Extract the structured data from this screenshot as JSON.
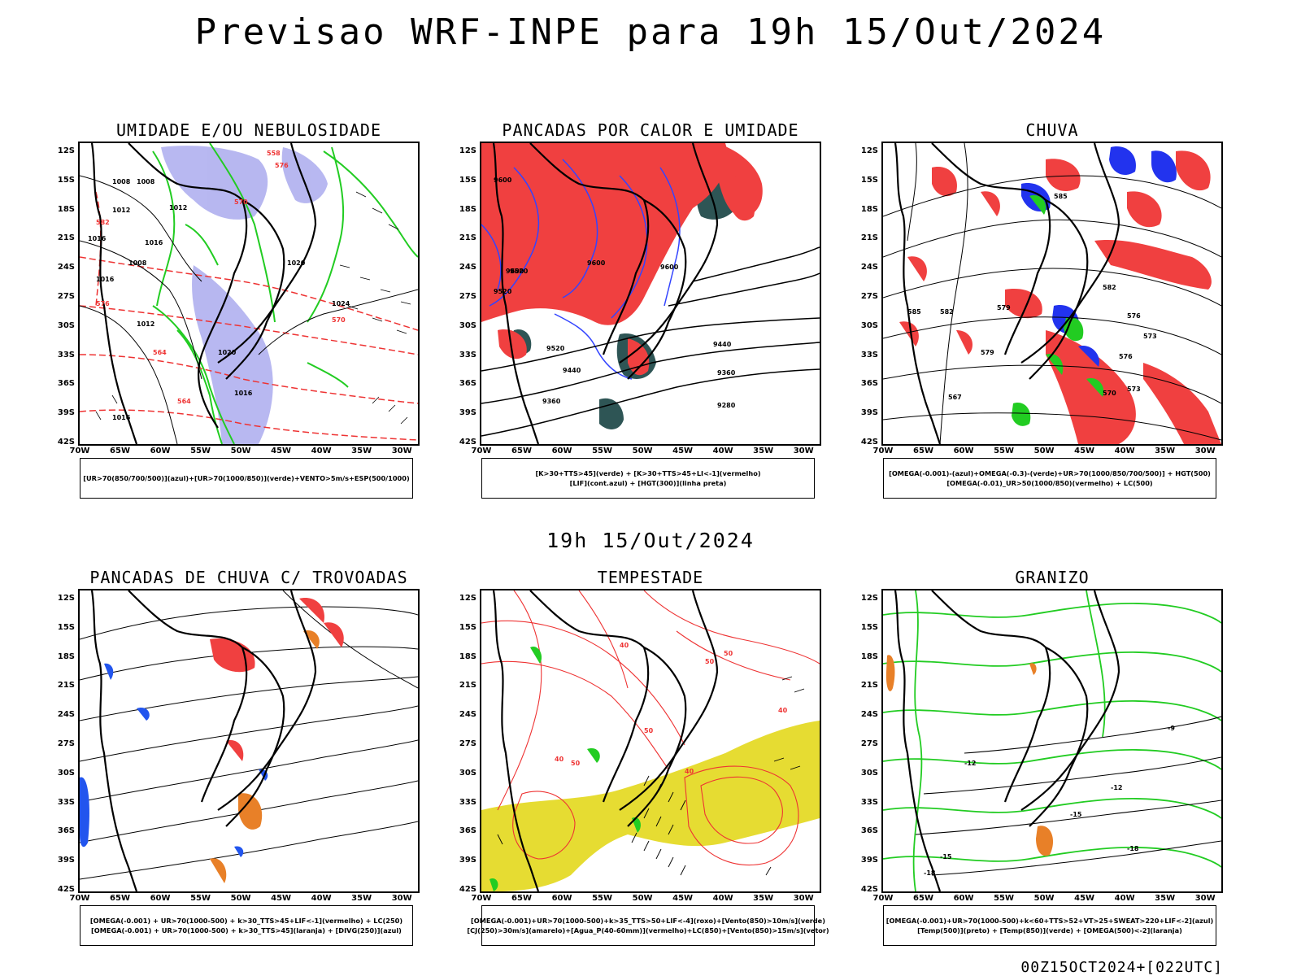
{
  "title": "Previsao WRF-INPE  para 19h 15/Out/2024",
  "middle_label": "19h 15/Out/2024",
  "footer": "00Z15OCT2024+[022UTC]",
  "axes": {
    "lat_labels": [
      "12S",
      "15S",
      "18S",
      "21S",
      "24S",
      "27S",
      "30S",
      "33S",
      "36S",
      "39S",
      "42S"
    ],
    "lon_labels": [
      "70W",
      "65W",
      "60W",
      "55W",
      "50W",
      "45W",
      "40W",
      "35W",
      "30W"
    ],
    "lat_range": [
      -42,
      -11
    ],
    "lon_range": [
      -70,
      -28
    ]
  },
  "colors": {
    "blue_fill": "#b4b4f0",
    "green": "#22cc22",
    "red_fill": "#f04040",
    "dark_teal": "#2e5555",
    "yellow": "#e6dc32",
    "orange": "#e88028",
    "contour_red": "#ee3333",
    "contour_blue": "#3344ff"
  },
  "panels": [
    {
      "title": "UMIDADE E/OU NEBULOSIDADE",
      "legend": [
        "[UR>70(850/700/500)](azul)+[UR>70(1000/850)](verde)+VENTO>5m/s+ESP(500/1000)"
      ],
      "contour_labels": [
        "1008",
        "1008",
        "1012",
        "1012",
        "1016",
        "1016",
        "1016",
        "1020",
        "1020",
        "1024",
        "1012",
        "1016",
        "1016",
        "1008",
        "576",
        "570",
        "582",
        "564",
        "558",
        "576",
        "570",
        "564"
      ]
    },
    {
      "title": "PANCADAS POR CALOR E UMIDADE",
      "legend": [
        "[K>30+TTS>45](verde) + [K>30+TTS>45+LI<-1](vermelho)",
        "[LIF](cont.azul) + [HGT(300)](linha preta)"
      ],
      "contour_labels": [
        "9600",
        "9600",
        "9600",
        "9520",
        "9600",
        "9520",
        "9520",
        "9440",
        "9440",
        "9360",
        "9360",
        "9280"
      ]
    },
    {
      "title": "CHUVA",
      "legend": [
        "[OMEGA(-0.001)-(azul)+OMEGA(-0.3)-(verde)+UR>70(1000/850/700/500)] + HGT(500)",
        "[OMEGA(-0.01)_UR>50(1000/850)(vermelho) + LC(500)"
      ],
      "contour_labels": [
        "585",
        "582",
        "585",
        "582",
        "579",
        "576",
        "573",
        "579",
        "576",
        "573",
        "570",
        "567"
      ]
    },
    {
      "title": "PANCADAS DE CHUVA C/ TROVOADAS",
      "legend": [
        "[OMEGA(-0.001) + UR>70(1000-500) + k>30_TTS>45+LIF<-1](vermelho) + LC(250)",
        "[OMEGA(-0.001) + UR>70(1000-500) + k>30_TTS>45](laranja) + [DIVG(250)](azul)"
      ],
      "contour_labels": []
    },
    {
      "title": "TEMPESTADE",
      "legend": [
        "[OMEGA(-0.001)+UR>70(1000-500)+k>35_TTS>50+LIF<-4](roxo)+[Vento(850)>10m/s](verde)",
        "[CJ(250)>30m/s](amarelo)+[Agua_P(40-60mm)](vermelho)+LC(850)+[Vento(850)>15m/s](vetor)"
      ],
      "contour_labels": [
        "50",
        "50",
        "40",
        "40",
        "50",
        "40",
        "40",
        "50"
      ]
    },
    {
      "title": "GRANIZO",
      "legend": [
        "[OMEGA(-0.001)+UR>70(1000-500)+k<60+TTS>52+VT>25+SWEAT>220+LIF<-2](azul)",
        "[Temp(500)](preto) + [Temp(850)](verde) + [OMEGA(500)<-2](laranja)"
      ],
      "contour_labels": [
        "-9",
        "-12",
        "-15",
        "-18",
        "-12",
        "-15",
        "-18"
      ]
    }
  ]
}
